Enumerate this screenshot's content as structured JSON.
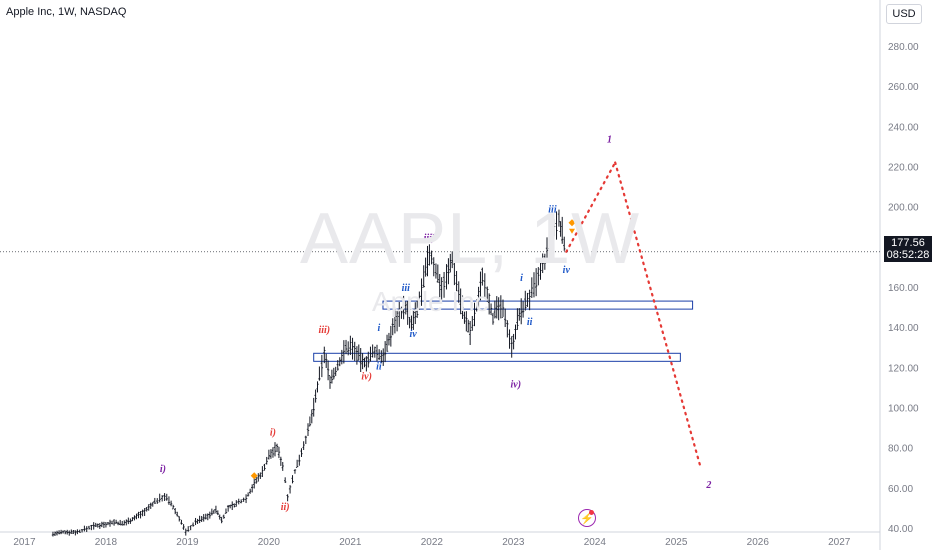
{
  "header": {
    "symbol_title": "Apple Inc, 1W, NASDAQ",
    "currency": "USD"
  },
  "watermark": {
    "ticker": "AAPL, 1W",
    "name": "Apple Inc"
  },
  "price_label": {
    "price": "177.56",
    "countdown": "08:52:28"
  },
  "colors": {
    "red": "#e53935",
    "blue": "#1e58c8",
    "purple": "#7b1fa2",
    "zone": "#1a3fa8",
    "projection": "#e53935",
    "marker": "#ff9800"
  },
  "icons": {
    "event": "lightning-icon"
  },
  "chart_data": {
    "type": "candlestick",
    "title": "",
    "x_ticks": [
      "2017",
      "2018",
      "2019",
      "2020",
      "2021",
      "2022",
      "2023",
      "2024",
      "2025",
      "2026",
      "2027"
    ],
    "y_ticks": [
      "40.00",
      "60.00",
      "80.00",
      "100.00",
      "120.00",
      "140.00",
      "160.00",
      "180.00",
      "200.00",
      "220.00",
      "240.00",
      "260.00",
      "280.00"
    ],
    "ylim": [
      38,
      290
    ],
    "xlim": [
      2016.7,
      2027.5
    ],
    "series": [
      {
        "values": [
          [
            2017.35,
            37
          ],
          [
            2017.5,
            38
          ],
          [
            2017.65,
            38
          ],
          [
            2017.85,
            41
          ],
          [
            2018.0,
            42
          ],
          [
            2018.1,
            43
          ],
          [
            2018.2,
            42
          ],
          [
            2018.35,
            45
          ],
          [
            2018.5,
            49
          ],
          [
            2018.6,
            53
          ],
          [
            2018.72,
            56
          ],
          [
            2018.8,
            52
          ],
          [
            2018.9,
            45
          ],
          [
            2018.98,
            38
          ],
          [
            2019.1,
            43
          ],
          [
            2019.25,
            46
          ],
          [
            2019.35,
            49
          ],
          [
            2019.42,
            44
          ],
          [
            2019.5,
            50
          ],
          [
            2019.6,
            52
          ],
          [
            2019.72,
            55
          ],
          [
            2019.82,
            62
          ],
          [
            2019.92,
            68
          ],
          [
            2020.0,
            76
          ],
          [
            2020.1,
            80
          ],
          [
            2020.17,
            71
          ],
          [
            2020.23,
            56
          ],
          [
            2020.32,
            68
          ],
          [
            2020.4,
            78
          ],
          [
            2020.48,
            88
          ],
          [
            2020.55,
            100
          ],
          [
            2020.62,
            115
          ],
          [
            2020.68,
            127
          ],
          [
            2020.75,
            114
          ],
          [
            2020.82,
            118
          ],
          [
            2020.92,
            128
          ],
          [
            2021.0,
            131
          ],
          [
            2021.08,
            127
          ],
          [
            2021.15,
            122
          ],
          [
            2021.22,
            124
          ],
          [
            2021.3,
            128
          ],
          [
            2021.38,
            125
          ],
          [
            2021.45,
            130
          ],
          [
            2021.52,
            140
          ],
          [
            2021.6,
            147
          ],
          [
            2021.68,
            150
          ],
          [
            2021.75,
            141
          ],
          [
            2021.82,
            148
          ],
          [
            2021.9,
            163
          ],
          [
            2021.97,
            177
          ],
          [
            2022.05,
            168
          ],
          [
            2022.12,
            160
          ],
          [
            2022.18,
            165
          ],
          [
            2022.25,
            174
          ],
          [
            2022.33,
            158
          ],
          [
            2022.4,
            145
          ],
          [
            2022.47,
            137
          ],
          [
            2022.55,
            150
          ],
          [
            2022.62,
            166
          ],
          [
            2022.68,
            158
          ],
          [
            2022.75,
            145
          ],
          [
            2022.82,
            150
          ],
          [
            2022.9,
            146
          ],
          [
            2022.98,
            130
          ],
          [
            2023.05,
            143
          ],
          [
            2023.12,
            150
          ],
          [
            2023.2,
            155
          ],
          [
            2023.28,
            162
          ],
          [
            2023.36,
            170
          ],
          [
            2023.44,
            180
          ],
          [
            2023.5,
            188
          ],
          [
            2023.56,
            194
          ],
          [
            2023.6,
            186
          ],
          [
            2023.65,
            177.56
          ]
        ]
      }
    ],
    "zones": [
      {
        "x_start": 2021.4,
        "x_end": 2025.2,
        "y_low": 149,
        "y_high": 153
      },
      {
        "x_start": 2020.55,
        "x_end": 2025.05,
        "y_low": 123,
        "y_high": 127
      }
    ],
    "projection": [
      [
        2023.65,
        177.56
      ],
      [
        2024.25,
        222
      ],
      [
        2025.3,
        70
      ]
    ],
    "last_price": 177.56,
    "annotations": [
      {
        "text": "i)",
        "x": 2018.7,
        "y": 68,
        "color": "purple"
      },
      {
        "text": "i)",
        "x": 2020.05,
        "y": 86,
        "color": "red"
      },
      {
        "text": "ii)",
        "x": 2020.2,
        "y": 49,
        "color": "red"
      },
      {
        "text": "iii)",
        "x": 2020.68,
        "y": 137,
        "color": "red"
      },
      {
        "text": "iv)",
        "x": 2021.2,
        "y": 114,
        "color": "red"
      },
      {
        "text": "ii",
        "x": 2021.35,
        "y": 119,
        "color": "blue"
      },
      {
        "text": "i",
        "x": 2021.35,
        "y": 138,
        "color": "blue"
      },
      {
        "text": "iii",
        "x": 2021.68,
        "y": 158,
        "color": "blue"
      },
      {
        "text": "iv",
        "x": 2021.77,
        "y": 135,
        "color": "blue"
      },
      {
        "text": "iii)",
        "x": 2021.97,
        "y": 183,
        "color": "purple"
      },
      {
        "text": "iv)",
        "x": 2023.03,
        "y": 110,
        "color": "purple"
      },
      {
        "text": "i",
        "x": 2023.1,
        "y": 163,
        "color": "blue"
      },
      {
        "text": "ii",
        "x": 2023.2,
        "y": 141,
        "color": "blue"
      },
      {
        "text": "iii",
        "x": 2023.48,
        "y": 197,
        "color": "blue"
      },
      {
        "text": "iv",
        "x": 2023.65,
        "y": 167,
        "color": "blue"
      },
      {
        "text": "1",
        "x": 2024.18,
        "y": 232,
        "color": "purple"
      },
      {
        "text": "2",
        "x": 2025.4,
        "y": 60,
        "color": "purple"
      }
    ],
    "markers": [
      {
        "x": 2019.82,
        "y": 66,
        "shape": "diamond"
      },
      {
        "x": 2023.72,
        "y": 192,
        "shape": "diamond"
      },
      {
        "x": 2023.72,
        "y": 188,
        "shape": "down-triangle"
      }
    ],
    "grid": false
  }
}
